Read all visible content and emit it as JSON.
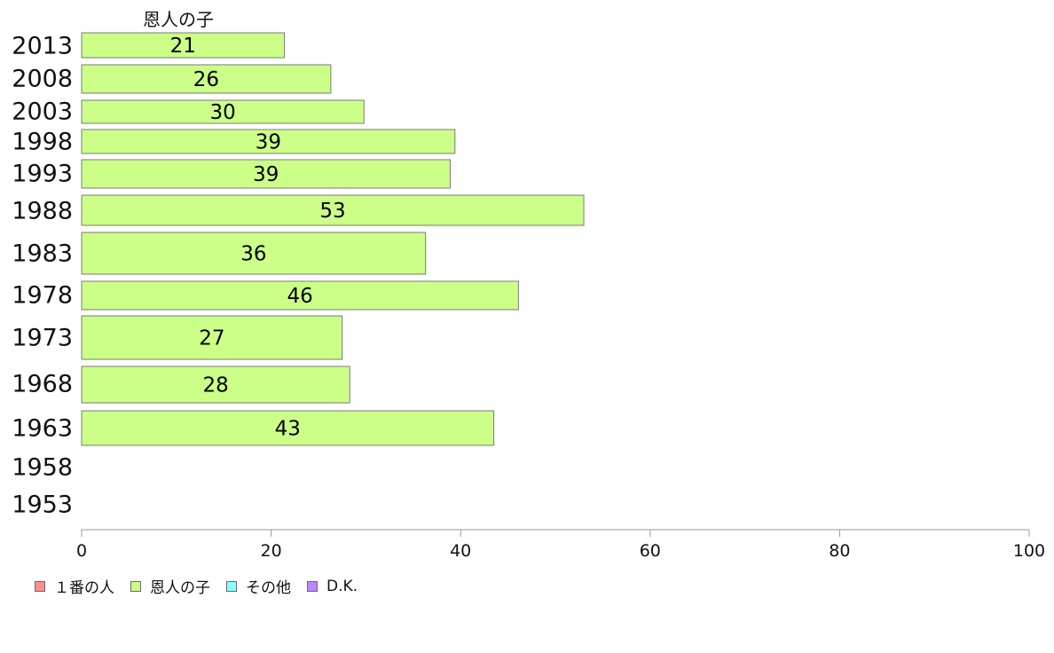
{
  "chart_data": {
    "type": "bar",
    "orientation": "horizontal",
    "series_label": "恩人の子",
    "categories": [
      "2013",
      "2008",
      "2003",
      "1998",
      "1993",
      "1988",
      "1983",
      "1978",
      "1973",
      "1968",
      "1963",
      "1958",
      "1953"
    ],
    "series": [
      {
        "name": "恩人の子",
        "color": "#ccff88",
        "values": [
          21,
          26,
          30,
          39,
          39,
          53,
          36,
          46,
          27,
          28,
          43,
          null,
          null
        ],
        "display_values": [
          21.4,
          26.3,
          29.8,
          39.4,
          38.9,
          53.0,
          36.3,
          46.1,
          27.5,
          28.3,
          43.5,
          null,
          null
        ]
      }
    ],
    "x_ticks": [
      "0",
      "20",
      "40",
      "60",
      "80",
      "100"
    ],
    "xlim": [
      0,
      100
    ],
    "grid": false,
    "legend_position": "bottom-left",
    "legend": [
      {
        "label": "１番の人",
        "color": "#ff8f8f"
      },
      {
        "label": "恩人の子",
        "color": "#ccff88"
      },
      {
        "label": "その他",
        "color": "#88ffff"
      },
      {
        "label": "D.K.",
        "color": "#bb88ff"
      }
    ]
  }
}
